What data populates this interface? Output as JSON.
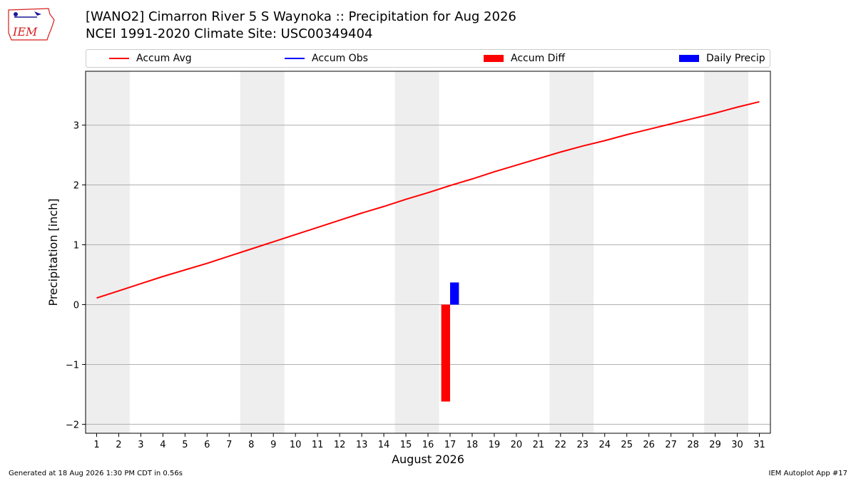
{
  "logo": {
    "text": "IEM",
    "colors": {
      "primary": "#d81e1e",
      "secondary": "#1a1a9a"
    }
  },
  "header": {
    "title": "[WANO2] Cimarron River 5 S Waynoka :: Precipitation for Aug 2026",
    "subtitle": "NCEI 1991-2020 Climate Site: USC00349404"
  },
  "legend": {
    "items": [
      {
        "label": "Accum Avg",
        "kind": "line",
        "color": "#ff0000"
      },
      {
        "label": "Accum Obs",
        "kind": "line",
        "color": "#0000ff"
      },
      {
        "label": "Accum Diff",
        "kind": "patch",
        "color": "#ff0000"
      },
      {
        "label": "Daily Precip",
        "kind": "patch",
        "color": "#0000ff"
      }
    ]
  },
  "footer": {
    "left": "Generated at 18 Aug 2026 1:30 PM CDT in 0.56s",
    "right": "IEM Autoplot App #17"
  },
  "chart_data": {
    "type": "line",
    "title": "[WANO2] Cimarron River 5 S Waynoka :: Precipitation for Aug 2026",
    "xlabel": "August 2026",
    "ylabel": "Precipitation [inch]",
    "xlim": [
      0.5,
      31.5
    ],
    "ylim": [
      -2.15,
      3.9
    ],
    "xticks": [
      1,
      2,
      3,
      4,
      5,
      6,
      7,
      8,
      9,
      10,
      11,
      12,
      13,
      14,
      15,
      16,
      17,
      18,
      19,
      20,
      21,
      22,
      23,
      24,
      25,
      26,
      27,
      28,
      29,
      30,
      31
    ],
    "yticks": [
      -2,
      -1,
      0,
      1,
      2,
      3
    ],
    "grid": "y",
    "legend_position": "top",
    "weekend_shading": [
      [
        0.5,
        2.5
      ],
      [
        7.5,
        9.5
      ],
      [
        14.5,
        16.5
      ],
      [
        21.5,
        23.5
      ],
      [
        28.5,
        30.5
      ]
    ],
    "x": [
      1,
      2,
      3,
      4,
      5,
      6,
      7,
      8,
      9,
      10,
      11,
      12,
      13,
      14,
      15,
      16,
      17,
      18,
      19,
      20,
      21,
      22,
      23,
      24,
      25,
      26,
      27,
      28,
      29,
      30,
      31
    ],
    "series": [
      {
        "name": "Accum Avg",
        "type": "line",
        "color": "#ff0000",
        "values": [
          0.11,
          0.23,
          0.35,
          0.47,
          0.58,
          0.69,
          0.81,
          0.93,
          1.05,
          1.17,
          1.29,
          1.41,
          1.53,
          1.64,
          1.76,
          1.87,
          1.99,
          2.1,
          2.22,
          2.33,
          2.44,
          2.55,
          2.65,
          2.74,
          2.84,
          2.93,
          3.02,
          3.11,
          3.2,
          3.3,
          3.39
        ]
      },
      {
        "name": "Accum Diff",
        "type": "bar",
        "color": "#ff0000",
        "points": [
          {
            "x": 17,
            "value": -1.62
          }
        ]
      },
      {
        "name": "Daily Precip",
        "type": "bar",
        "color": "#0000ff",
        "points": [
          {
            "x": 17,
            "value": 0.37
          }
        ]
      }
    ]
  }
}
